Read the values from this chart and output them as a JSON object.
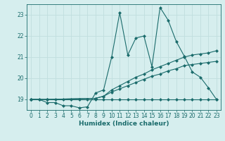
{
  "title": "",
  "xlabel": "Humidex (Indice chaleur)",
  "background_color": "#d6eeee",
  "grid_color": "#c0dede",
  "line_color": "#1a6b6b",
  "xlim": [
    -0.5,
    23.5
  ],
  "ylim": [
    18.5,
    23.5
  ],
  "yticks": [
    19,
    20,
    21,
    22,
    23
  ],
  "xticks": [
    0,
    1,
    2,
    3,
    4,
    5,
    6,
    7,
    8,
    9,
    10,
    11,
    12,
    13,
    14,
    15,
    16,
    17,
    18,
    19,
    20,
    21,
    22,
    23
  ],
  "s1_x": [
    0,
    1,
    2,
    3,
    4,
    5,
    6,
    7,
    8,
    9,
    10,
    11,
    12,
    13,
    14,
    15,
    16,
    17,
    18,
    19,
    20,
    21,
    22,
    23
  ],
  "s1_y": [
    19.0,
    19.0,
    18.85,
    18.85,
    18.7,
    18.7,
    18.6,
    18.65,
    19.3,
    19.45,
    21.0,
    23.1,
    21.1,
    21.9,
    22.0,
    20.55,
    23.35,
    22.75,
    21.75,
    21.05,
    20.3,
    20.05,
    19.55,
    19.0
  ],
  "s2_x": [
    0,
    2,
    8,
    9,
    10,
    11,
    12,
    13,
    14,
    15,
    16,
    17,
    18,
    19,
    20,
    21,
    22,
    23
  ],
  "s2_y": [
    19.0,
    19.0,
    19.05,
    19.15,
    19.45,
    19.65,
    19.85,
    20.05,
    20.2,
    20.4,
    20.55,
    20.7,
    20.85,
    21.0,
    21.1,
    21.15,
    21.2,
    21.3
  ],
  "s3_x": [
    0,
    2,
    8,
    9,
    10,
    11,
    12,
    13,
    14,
    15,
    16,
    17,
    18,
    19,
    20,
    21,
    22,
    23
  ],
  "s3_y": [
    19.0,
    19.0,
    19.05,
    19.15,
    19.35,
    19.5,
    19.65,
    19.8,
    19.95,
    20.1,
    20.2,
    20.35,
    20.45,
    20.6,
    20.65,
    20.7,
    20.75,
    20.8
  ],
  "s4_x": [
    0,
    1,
    2,
    3,
    4,
    5,
    6,
    7,
    8,
    9,
    10,
    11,
    12,
    13,
    14,
    15,
    16,
    17,
    18,
    19,
    20,
    21,
    22,
    23
  ],
  "s4_y": [
    19.0,
    19.0,
    19.0,
    19.0,
    19.0,
    19.0,
    19.0,
    19.0,
    19.0,
    19.0,
    19.0,
    19.0,
    19.0,
    19.0,
    19.0,
    19.0,
    19.0,
    19.0,
    19.0,
    19.0,
    19.0,
    19.0,
    19.0,
    19.0
  ]
}
